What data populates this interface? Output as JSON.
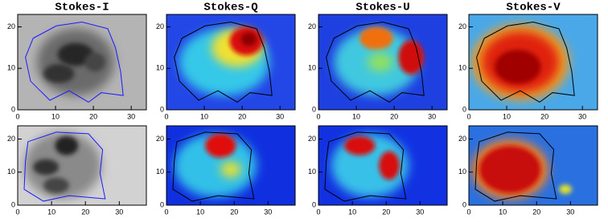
{
  "chart_data": [
    {
      "type": "image",
      "title": "Stokes-I",
      "colormap": "gray",
      "contour_color": "#1a1aff",
      "xlim": [
        0,
        34
      ],
      "xticks": [
        0,
        10,
        20,
        30
      ],
      "ylim": [
        0,
        23
      ],
      "yticks": [
        0,
        10,
        20
      ]
    },
    {
      "type": "image",
      "title": "Stokes-Q",
      "colormap": "jet",
      "contour_color": "#000000",
      "xlim": [
        0,
        34
      ],
      "xticks": [
        0,
        10,
        20,
        30
      ],
      "ylim": [
        0,
        23
      ],
      "yticks": [
        0,
        10,
        20
      ]
    },
    {
      "type": "image",
      "title": "Stokes-U",
      "colormap": "jet",
      "contour_color": "#000000",
      "xlim": [
        0,
        34
      ],
      "xticks": [
        0,
        10,
        20,
        30
      ],
      "ylim": [
        0,
        23
      ],
      "yticks": [
        0,
        10,
        20
      ]
    },
    {
      "type": "image",
      "title": "Stokes-V",
      "colormap": "jet",
      "contour_color": "#000000",
      "xlim": [
        0,
        34
      ],
      "xticks": [
        0,
        10,
        20,
        30
      ],
      "ylim": [
        0,
        23
      ],
      "yticks": [
        0,
        10,
        20
      ]
    },
    {
      "type": "image",
      "colormap": "gray",
      "contour_color": "#1a1aff",
      "xlim": [
        0,
        38
      ],
      "xticks": [
        0,
        10,
        20,
        30
      ],
      "ylim": [
        0,
        24
      ],
      "yticks": [
        0,
        10,
        20
      ]
    },
    {
      "type": "image",
      "colormap": "jet",
      "contour_color": "#000000",
      "xlim": [
        0,
        38
      ],
      "xticks": [
        0,
        10,
        20,
        30
      ],
      "ylim": [
        0,
        24
      ],
      "yticks": [
        0,
        10,
        20
      ]
    },
    {
      "type": "image",
      "colormap": "jet",
      "contour_color": "#000000",
      "xlim": [
        0,
        38
      ],
      "xticks": [
        0,
        10,
        20,
        30
      ],
      "ylim": [
        0,
        24
      ],
      "yticks": [
        0,
        10,
        20
      ]
    },
    {
      "type": "image",
      "colormap": "jet",
      "contour_color": "#000000",
      "xlim": [
        0,
        38
      ],
      "xticks": [
        0,
        10,
        20,
        30
      ],
      "ylim": [
        0,
        24
      ],
      "yticks": [
        0,
        10,
        20
      ]
    }
  ]
}
